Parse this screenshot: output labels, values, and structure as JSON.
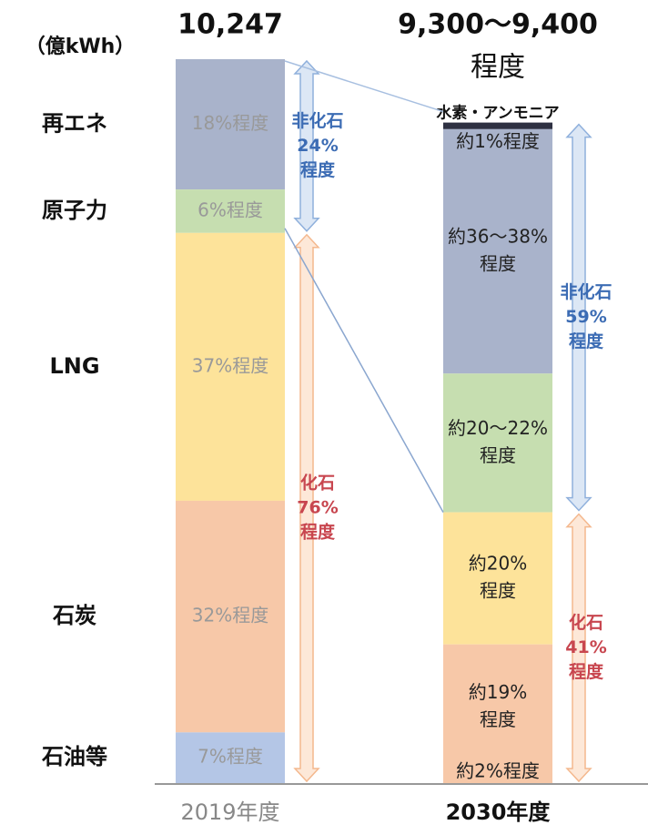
{
  "chart_data": {
    "type": "stacked_bar",
    "unit": "（億kWh）",
    "row_labels": [
      "再エネ",
      "原子力",
      "LNG",
      "石炭",
      "石油等"
    ],
    "bars": [
      {
        "category": "2019年度",
        "total": 10247,
        "total_label": [
          "10,247"
        ],
        "segments": [
          {
            "value": 18,
            "label": [
              "18%程度"
            ],
            "color": "#a9b3cb"
          },
          {
            "value": 6,
            "label": [
              "6%程度"
            ],
            "color": "#c6deb0"
          },
          {
            "value": 37,
            "label": [
              "37%程度"
            ],
            "color": "#fde39a"
          },
          {
            "value": 32,
            "label": [
              "32%程度"
            ],
            "color": "#f7c8a8"
          },
          {
            "value": 7,
            "label": [
              "7%程度"
            ],
            "color": "#b4c6e6"
          }
        ],
        "annotations": [
          {
            "text": [
              "非化石",
              "24%",
              "程度"
            ],
            "color": "#3c6cb4"
          },
          {
            "text": [
              "化石",
              "76%",
              "程度"
            ],
            "color": "#c8464f"
          }
        ]
      },
      {
        "category": "2030年度",
        "total": 9350,
        "total_label": [
          "9,300～9,400",
          "程度"
        ],
        "segments": [
          {
            "name": "水素・アンモニア",
            "value": 1,
            "label": [
              "約1%程度"
            ],
            "color": "#2e3142"
          },
          {
            "value": 37,
            "label": [
              "約36～38%",
              "程度"
            ],
            "color": "#a9b3cb"
          },
          {
            "value": 21,
            "label": [
              "約20～22%",
              "程度"
            ],
            "color": "#c6deb0"
          },
          {
            "value": 20,
            "label": [
              "約20%",
              "程度"
            ],
            "color": "#fde39a"
          },
          {
            "value": 19,
            "label": [
              "約19%",
              "程度"
            ],
            "color": "#f7c8a8"
          },
          {
            "value": 2,
            "label": [
              "約2%程度"
            ],
            "color": "#f7c8a8"
          }
        ],
        "annotations": [
          {
            "text": [
              "非化石",
              "59%",
              "程度"
            ],
            "color": "#3c6cb4"
          },
          {
            "text": [
              "化石",
              "41%",
              "程度"
            ],
            "color": "#c8464f"
          }
        ]
      }
    ]
  }
}
